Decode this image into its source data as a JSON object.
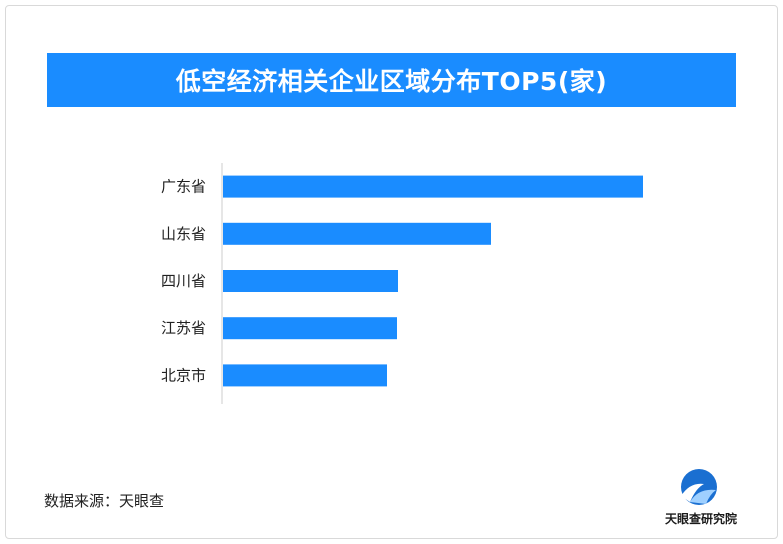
{
  "colors": {
    "accent": "#1a8cff",
    "bar": "#1a8cff",
    "axis": "#cccccc",
    "text": "#222222"
  },
  "source": "数据来源：天眼查",
  "logo": {
    "text": "天眼查研究院",
    "icon": "tianyancha-logo-icon"
  },
  "chart_data": {
    "type": "bar",
    "orientation": "horizontal",
    "title": "低空经济相关企业区域分布TOP5(家)",
    "categories": [
      "广东省",
      "山东省",
      "四川省",
      "江苏省",
      "北京市"
    ],
    "values": [
      420,
      268,
      175,
      174,
      164
    ],
    "xlabel": "",
    "ylabel": "",
    "grid": false,
    "legend": "none"
  }
}
